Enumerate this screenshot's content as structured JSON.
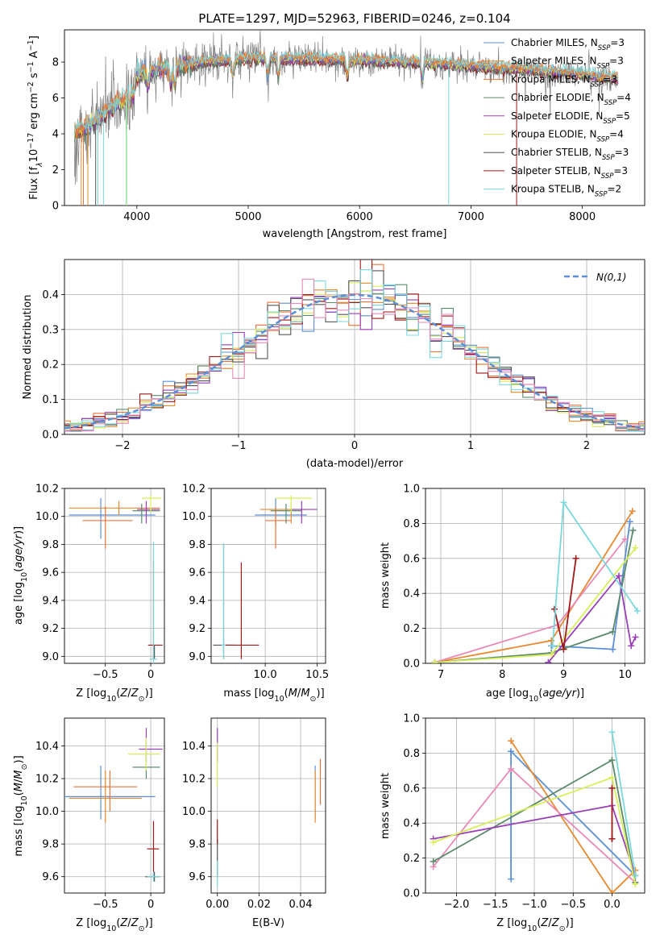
{
  "title": "PLATE=1297, MJD=52963, FIBERID=0246, z=0.104",
  "colors": {
    "Chabrier MILES": "#5b8fd6",
    "Salpeter MILES": "#e8892f",
    "Kroupa MILES": "#e9743b",
    "Chabrier ELODIE": "#5a8a6a",
    "Salpeter ELODIE": "#9a3fb8",
    "Kroupa ELODIE": "#d8ee5a",
    "Chabrier STELIB": "#555555",
    "Salpeter STELIB": "#a01818",
    "Kroupa STELIB": "#7ad8dc",
    "data": "#808080",
    "extra_pink": "#e889b8",
    "gauss": "#5b8fd6"
  },
  "chart_data": [
    {
      "id": "spectrum",
      "type": "line",
      "title": "PLATE=1297, MJD=52963, FIBERID=0246, z=0.104",
      "xlabel": "wavelength [Angstrom, rest frame]",
      "ylabel": "Flux [f_λ 10^-17 erg cm^-2 s^-1 A^-1]",
      "xlim": [
        3350,
        8560
      ],
      "ylim": [
        0,
        9.8
      ],
      "xticks": [
        4000,
        5000,
        6000,
        7000,
        8000
      ],
      "yticks": [
        0,
        2,
        4,
        6,
        8
      ],
      "grid": false,
      "legend_position": "right",
      "continuum": {
        "x": [
          3440,
          3500,
          3600,
          3700,
          3800,
          3900,
          4000,
          4100,
          4200,
          4400,
          4600,
          4800,
          5000,
          5200,
          5500,
          6000,
          6500,
          7000,
          7500,
          8000,
          8300
        ],
        "y": [
          4.1,
          4.3,
          4.6,
          5.1,
          5.6,
          6.0,
          7.3,
          7.5,
          7.6,
          7.8,
          8.0,
          8.1,
          8.2,
          8.2,
          8.2,
          8.1,
          8.0,
          7.8,
          7.6,
          7.3,
          7.1
        ]
      },
      "series": [
        {
          "name": "Chabrier MILES",
          "nssp": "3"
        },
        {
          "name": "Salpeter MILES",
          "nssp": "3"
        },
        {
          "name": "Kroupa MILES",
          "nssp": "3"
        },
        {
          "name": "Chabrier ELODIE",
          "nssp": "4"
        },
        {
          "name": "Salpeter ELODIE",
          "nssp": "5"
        },
        {
          "name": "Kroupa ELODIE",
          "nssp": "4"
        },
        {
          "name": "Chabrier STELIB",
          "nssp": "3"
        },
        {
          "name": "Salpeter STELIB",
          "nssp": "3"
        },
        {
          "name": "Kroupa STELIB",
          "nssp": "2"
        }
      ]
    },
    {
      "id": "residuals",
      "type": "histogram",
      "xlabel": "(data-model)/error",
      "ylabel": "Normed distribution",
      "xlim": [
        -2.5,
        2.5
      ],
      "ylim": [
        0,
        0.5
      ],
      "xticks": [
        -2,
        -1,
        0,
        1,
        2
      ],
      "yticks": [
        0.0,
        0.1,
        0.2,
        0.3,
        0.4
      ],
      "grid": true,
      "legend": "N(0,1)",
      "legend_position": "top-right",
      "bin_width": 0.1
    },
    {
      "id": "age_vs_Z",
      "type": "errorbar",
      "xlabel": "Z [log10(Z/Z_⊙)]",
      "ylabel": "age  [log10(age/yr)]",
      "xlim": [
        -0.95,
        0.15
      ],
      "ylim": [
        8.95,
        10.2
      ],
      "xticks": [
        -0.5,
        0.0
      ],
      "yticks": [
        9.0,
        9.2,
        9.4,
        9.6,
        9.8,
        10.0,
        10.2
      ],
      "grid": true,
      "points": [
        {
          "model": "Chabrier MILES",
          "x": -0.55,
          "y": 10.01,
          "xerr": [
            0.35,
            0.6
          ],
          "yerr": [
            0.17,
            0.12
          ]
        },
        {
          "model": "Salpeter MILES",
          "x": -0.35,
          "y": 10.06,
          "xerr": [
            0.55,
            0.45
          ],
          "yerr": [
            0.05,
            0.05
          ]
        },
        {
          "model": "Kroupa MILES",
          "x": -0.5,
          "y": 9.97,
          "xerr": [
            0.25,
            0.3
          ],
          "yerr": [
            0.2,
            0.1
          ]
        },
        {
          "model": "Chabrier ELODIE",
          "x": -0.1,
          "y": 10.04,
          "xerr": [
            0.1,
            0.2
          ],
          "yerr": [
            0.09,
            0.05
          ]
        },
        {
          "model": "Salpeter ELODIE",
          "x": -0.05,
          "y": 10.05,
          "xerr": [
            0.1,
            0.15
          ],
          "yerr": [
            0.1,
            0.06
          ]
        },
        {
          "model": "Kroupa ELODIE",
          "x": 0.0,
          "y": 10.13,
          "xerr": [
            0.1,
            0.12
          ],
          "yerr": [
            0.1,
            0.02
          ]
        },
        {
          "model": "Chabrier STELIB",
          "x": 0.04,
          "y": 9.08,
          "xerr": [
            0.02,
            0.0
          ],
          "yerr": [
            0.1,
            0.0
          ]
        },
        {
          "model": "Salpeter STELIB",
          "x": 0.03,
          "y": 9.08,
          "xerr": [
            0.06,
            0.1
          ],
          "yerr": [
            0.1,
            0.6
          ]
        },
        {
          "model": "Kroupa STELIB",
          "x": 0.03,
          "y": 8.98,
          "xerr": [
            0.04,
            0.04
          ],
          "yerr": [
            0.03,
            0.84
          ]
        }
      ]
    },
    {
      "id": "age_vs_mass",
      "type": "errorbar",
      "xlabel": "mass [log10(M/M_⊙)]",
      "xlim": [
        9.48,
        10.58
      ],
      "ylim": [
        8.95,
        10.2
      ],
      "xticks": [
        10.0,
        10.5
      ],
      "yticks": [
        9.0,
        9.2,
        9.4,
        9.6,
        9.8,
        10.0,
        10.2
      ],
      "grid": true,
      "points": [
        {
          "model": "Chabrier MILES",
          "x": 10.1,
          "y": 10.01,
          "xerr": [
            0.2,
            0.3
          ],
          "yerr": [
            0.08,
            0.12
          ]
        },
        {
          "model": "Salpeter MILES",
          "x": 10.25,
          "y": 10.05,
          "xerr": [
            0.3,
            0.15
          ],
          "yerr": [
            0.1,
            0.05
          ]
        },
        {
          "model": "Kroupa MILES",
          "x": 10.1,
          "y": 9.97,
          "xerr": [
            0.1,
            0.15
          ],
          "yerr": [
            0.2,
            0.1
          ]
        },
        {
          "model": "Chabrier ELODIE",
          "x": 10.2,
          "y": 10.04,
          "xerr": [
            0.15,
            0.15
          ],
          "yerr": [
            0.09,
            0.05
          ]
        },
        {
          "model": "Salpeter ELODIE",
          "x": 10.35,
          "y": 10.05,
          "xerr": [
            0.1,
            0.15
          ],
          "yerr": [
            0.1,
            0.06
          ]
        },
        {
          "model": "Kroupa ELODIE",
          "x": 10.25,
          "y": 10.13,
          "xerr": [
            0.15,
            0.2
          ],
          "yerr": [
            0.1,
            0.02
          ]
        },
        {
          "model": "Chabrier STELIB",
          "x": 9.6,
          "y": 9.08,
          "xerr": [
            0.1,
            0.1
          ],
          "yerr": [
            0.1,
            0.72
          ]
        },
        {
          "model": "Salpeter STELIB",
          "x": 9.77,
          "y": 9.08,
          "xerr": [
            0.17,
            0.17
          ],
          "yerr": [
            0.1,
            0.59
          ]
        },
        {
          "model": "Kroupa STELIB",
          "x": 9.6,
          "y": 9.08,
          "xerr": [
            0.02,
            0.02
          ],
          "yerr": [
            0.1,
            0.73
          ]
        }
      ]
    },
    {
      "id": "weight_vs_age",
      "type": "line",
      "xlabel": "age  [log10(age/yr)]",
      "ylabel": "mass weight",
      "xlim": [
        6.75,
        10.32
      ],
      "ylim": [
        0,
        1.0
      ],
      "xticks": [
        7,
        8,
        9,
        10
      ],
      "yticks": [
        0.0,
        0.2,
        0.4,
        0.6,
        0.8,
        1.0
      ],
      "grid": true,
      "series": [
        {
          "model": "Chabrier MILES",
          "x": [
            8.8,
            9.8,
            10.08
          ],
          "y": [
            0.1,
            0.08,
            0.81
          ]
        },
        {
          "model": "Salpeter MILES",
          "x": [
            6.9,
            8.8,
            10.12
          ],
          "y": [
            0.005,
            0.13,
            0.87
          ]
        },
        {
          "model": "extra_pink",
          "x": [
            6.9,
            8.9,
            10.0
          ],
          "y": [
            0.005,
            0.22,
            0.71
          ]
        },
        {
          "model": "Chabrier ELODIE",
          "x": [
            6.9,
            8.8,
            9.8,
            10.13
          ],
          "y": [
            0.005,
            0.06,
            0.18,
            0.76
          ]
        },
        {
          "model": "Salpeter ELODIE",
          "x": [
            8.75,
            9.9,
            10.1,
            10.17
          ],
          "y": [
            0.005,
            0.5,
            0.1,
            0.15
          ]
        },
        {
          "model": "Kroupa ELODIE",
          "x": [
            6.9,
            8.8,
            10.17
          ],
          "y": [
            0.005,
            0.05,
            0.66
          ]
        },
        {
          "model": "Salpeter STELIB",
          "x": [
            8.85,
            9.0,
            9.2
          ],
          "y": [
            0.31,
            0.08,
            0.6
          ]
        },
        {
          "model": "Kroupa STELIB",
          "x": [
            8.82,
            9.0,
            10.2
          ],
          "y": [
            0.1,
            0.92,
            0.3
          ]
        }
      ]
    },
    {
      "id": "mass_vs_Z",
      "type": "errorbar",
      "xlabel": "Z [log10(Z/Z_⊙)]",
      "ylabel": "mass [log10(M/M_⊙)]",
      "xlim": [
        -0.95,
        0.15
      ],
      "ylim": [
        9.5,
        10.57
      ],
      "xticks": [
        -0.5,
        0.0
      ],
      "yticks": [
        9.6,
        9.8,
        10.0,
        10.2,
        10.4
      ],
      "grid": true,
      "points": [
        {
          "model": "Chabrier MILES",
          "x": -0.55,
          "y": 10.09,
          "xerr": [
            0.4,
            0.6
          ],
          "yerr": [
            0.14,
            0.19
          ]
        },
        {
          "model": "Salpeter MILES",
          "x": -0.5,
          "y": 10.08,
          "xerr": [
            0.4,
            0.4
          ],
          "yerr": [
            0.15,
            0.17
          ]
        },
        {
          "model": "Kroupa MILES",
          "x": -0.45,
          "y": 10.15,
          "xerr": [
            0.4,
            0.3
          ],
          "yerr": [
            0.15,
            0.1
          ]
        },
        {
          "model": "Chabrier ELODIE",
          "x": -0.05,
          "y": 10.27,
          "xerr": [
            0.15,
            0.15
          ],
          "yerr": [
            0.07,
            0.07
          ]
        },
        {
          "model": "Salpeter ELODIE",
          "x": -0.05,
          "y": 10.38,
          "xerr": [
            0.08,
            0.18
          ],
          "yerr": [
            0.08,
            0.13
          ]
        },
        {
          "model": "Kroupa ELODIE",
          "x": -0.05,
          "y": 10.35,
          "xerr": [
            0.2,
            0.15
          ],
          "yerr": [
            0.1,
            0.1
          ]
        },
        {
          "model": "Chabrier STELIB",
          "x": 0.04,
          "y": 9.6,
          "xerr": [
            0.1,
            0.06
          ],
          "yerr": [
            0.03,
            0.03
          ]
        },
        {
          "model": "Salpeter STELIB",
          "x": 0.03,
          "y": 9.77,
          "xerr": [
            0.07,
            0.06
          ],
          "yerr": [
            0.17,
            0.17
          ]
        },
        {
          "model": "Kroupa STELIB",
          "x": 0.03,
          "y": 9.6,
          "xerr": [
            0.07,
            0.07
          ],
          "yerr": [
            0.03,
            0.03
          ]
        }
      ]
    },
    {
      "id": "mass_vs_EBV",
      "type": "errorbar",
      "xlabel": "E(B-V)",
      "xlim": [
        -0.003,
        0.052
      ],
      "ylim": [
        9.5,
        10.57
      ],
      "xticks": [
        0.0,
        0.02,
        0.04
      ],
      "xticklabels": [
        "0.00",
        "0.02",
        "0.04"
      ],
      "yticks": [
        9.6,
        9.8,
        10.0,
        10.2,
        10.4
      ],
      "grid": true,
      "points": [
        {
          "model": "Chabrier MILES",
          "x": 0.047,
          "y": 10.09,
          "yerr": [
            0.14,
            0.19
          ]
        },
        {
          "model": "Salpeter MILES",
          "x": 0.047,
          "y": 10.08,
          "yerr": [
            0.15,
            0.17
          ]
        },
        {
          "model": "Kroupa MILES",
          "x": 0.0495,
          "y": 10.18,
          "yerr": [
            0.14,
            0.14
          ]
        },
        {
          "model": "Salpeter ELODIE",
          "x": 0.0,
          "y": 10.38,
          "yerr": [
            0.08,
            0.13
          ]
        },
        {
          "model": "Kroupa ELODIE",
          "x": 0.0,
          "y": 10.3,
          "yerr": [
            0.15,
            0.12
          ]
        },
        {
          "model": "Chabrier STELIB",
          "x": 0.0,
          "y": 9.75,
          "yerr": [
            0.15,
            0.08
          ]
        },
        {
          "model": "Salpeter STELIB",
          "x": 0.0,
          "y": 9.88,
          "yerr": [
            0.08,
            0.07
          ]
        },
        {
          "model": "Kroupa STELIB",
          "x": 0.0,
          "y": 9.62,
          "yerr": [
            0.08,
            0.08
          ]
        }
      ]
    },
    {
      "id": "weight_vs_Z",
      "type": "line",
      "xlabel": "Z [log10(Z/Z_⊙)]",
      "ylabel": "mass weight",
      "xlim": [
        -2.4,
        0.42
      ],
      "ylim": [
        0,
        1.0
      ],
      "xticks": [
        -2.0,
        -1.5,
        -1.0,
        -0.5,
        0.0
      ],
      "yticks": [
        0.0,
        0.2,
        0.4,
        0.6,
        0.8,
        1.0
      ],
      "grid": true,
      "series": [
        {
          "model": "Chabrier MILES",
          "x": [
            -1.3,
            -1.3,
            0.3
          ],
          "y": [
            0.08,
            0.81,
            0.1
          ]
        },
        {
          "model": "Salpeter MILES",
          "x": [
            -1.3,
            0.0,
            0.3
          ],
          "y": [
            0.87,
            0.0,
            0.13
          ]
        },
        {
          "model": "extra_pink",
          "x": [
            -2.3,
            -1.3,
            0.3
          ],
          "y": [
            0.15,
            0.71,
            0.06
          ]
        },
        {
          "model": "Chabrier ELODIE",
          "x": [
            -2.3,
            0.0,
            0.3
          ],
          "y": [
            0.18,
            0.76,
            0.06
          ]
        },
        {
          "model": "Salpeter ELODIE",
          "x": [
            -2.3,
            0.0,
            0.3
          ],
          "y": [
            0.31,
            0.5,
            0.1
          ]
        },
        {
          "model": "Kroupa ELODIE",
          "x": [
            -2.3,
            0.0,
            0.3
          ],
          "y": [
            0.29,
            0.66,
            0.05
          ]
        },
        {
          "model": "Salpeter STELIB",
          "x": [
            0.0,
            0.0,
            0.0
          ],
          "y": [
            0.31,
            0.6,
            0.31
          ]
        },
        {
          "model": "Kroupa STELIB",
          "x": [
            0.0,
            0.3
          ],
          "y": [
            0.92,
            0.1
          ]
        }
      ]
    }
  ]
}
